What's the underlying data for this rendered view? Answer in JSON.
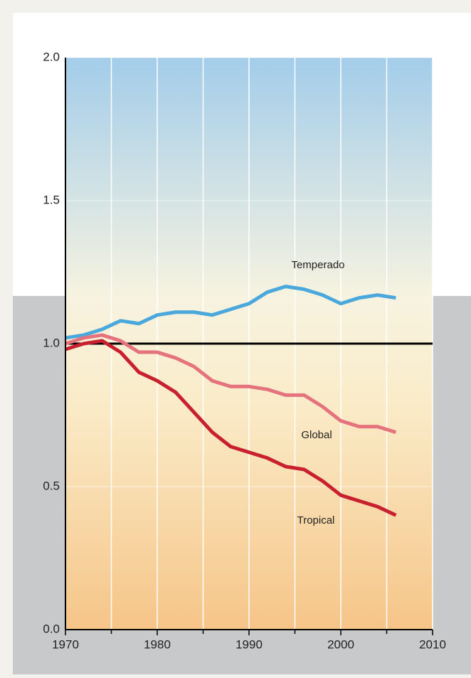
{
  "chart_data": {
    "type": "line",
    "x": [
      1970,
      1972,
      1974,
      1976,
      1978,
      1980,
      1982,
      1984,
      1986,
      1988,
      1990,
      1992,
      1994,
      1996,
      1998,
      2000,
      2002,
      2004,
      2006
    ],
    "series": [
      {
        "name": "Temperado",
        "color": "#4aa8dc",
        "values": [
          1.02,
          1.03,
          1.05,
          1.08,
          1.07,
          1.1,
          1.11,
          1.11,
          1.1,
          1.12,
          1.14,
          1.18,
          1.2,
          1.19,
          1.17,
          1.14,
          1.16,
          1.17,
          1.16
        ]
      },
      {
        "name": "Global",
        "color": "#e5737d",
        "values": [
          1.0,
          1.02,
          1.03,
          1.01,
          0.97,
          0.97,
          0.95,
          0.92,
          0.87,
          0.85,
          0.85,
          0.84,
          0.82,
          0.82,
          0.78,
          0.73,
          0.71,
          0.71,
          0.69
        ]
      },
      {
        "name": "Tropical",
        "color": "#c8202e",
        "values": [
          0.98,
          1.0,
          1.01,
          0.97,
          0.9,
          0.87,
          0.83,
          0.76,
          0.69,
          0.64,
          0.62,
          0.6,
          0.57,
          0.56,
          0.52,
          0.47,
          0.45,
          0.43,
          0.4
        ]
      }
    ],
    "xlim": [
      1970,
      2010
    ],
    "xticks": [
      1970,
      1980,
      1990,
      2000,
      2010
    ],
    "xminorticks": [
      1975,
      1985,
      1995,
      2005
    ],
    "ylim": [
      0,
      2
    ],
    "yticks": [
      {
        "value": 0,
        "label": "0.0"
      },
      0.5,
      {
        "value": 1,
        "label": "1.0"
      },
      1.5,
      {
        "value": 2,
        "label": "2.0"
      }
    ],
    "reference_line": 1,
    "grid": true
  }
}
